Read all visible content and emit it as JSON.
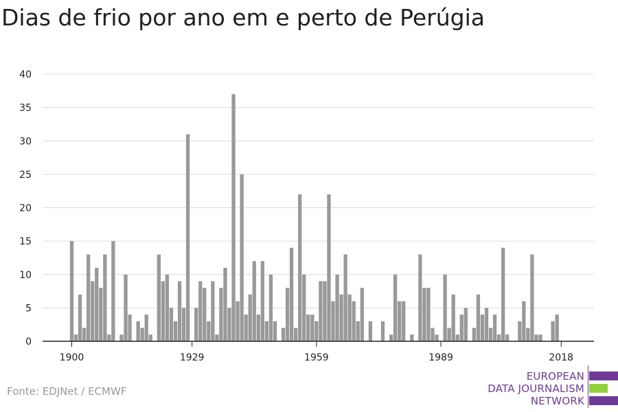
{
  "title": "Dias de frio por ano em e perto de Perúgia",
  "source": "Fonte: EDJNet / ECMWF",
  "logo": {
    "line1": "EUROPEAN",
    "line2": "DATA JOURNALISM",
    "line3": "NETWORK"
  },
  "colors": {
    "bar": "#999999",
    "grid": "#dcdcdc",
    "axis": "#222222",
    "logo_purple": "#6e3a96",
    "logo_green": "#93d13a"
  },
  "chart_data": {
    "type": "bar",
    "title": "Dias de frio por ano em e perto de Perúgia",
    "xlabel": "",
    "ylabel": "",
    "ylim": [
      0,
      40
    ],
    "yticks": [
      0,
      5,
      10,
      15,
      20,
      25,
      30,
      35,
      40
    ],
    "xticks": [
      1900,
      1929,
      1959,
      1989,
      2018
    ],
    "grid": true,
    "x_start": 1900,
    "x_end": 2018,
    "values": [
      15,
      1,
      7,
      2,
      13,
      9,
      11,
      8,
      13,
      1,
      15,
      0,
      1,
      10,
      4,
      0,
      3,
      2,
      4,
      1,
      0,
      13,
      9,
      10,
      5,
      3,
      9,
      5,
      31,
      0,
      5,
      9,
      8,
      3,
      9,
      1,
      8,
      11,
      5,
      37,
      6,
      25,
      4,
      7,
      12,
      4,
      12,
      3,
      10,
      3,
      0,
      2,
      8,
      14,
      2,
      22,
      10,
      4,
      4,
      3,
      9,
      9,
      22,
      6,
      10,
      7,
      13,
      7,
      6,
      3,
      8,
      0,
      3,
      0,
      0,
      3,
      0,
      1,
      10,
      6,
      6,
      0,
      1,
      0,
      13,
      8,
      8,
      2,
      1,
      0,
      10,
      2,
      7,
      1,
      4,
      5,
      0,
      2,
      7,
      4,
      5,
      2,
      4,
      1,
      14,
      1,
      0,
      0,
      3,
      6,
      2,
      13,
      1,
      1,
      0,
      0,
      3,
      4,
      0
    ]
  }
}
